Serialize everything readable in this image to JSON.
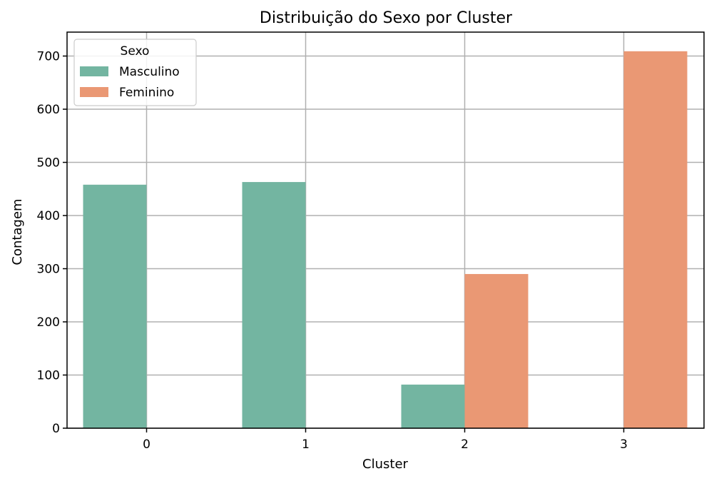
{
  "chart_data": {
    "type": "bar",
    "title": "Distribuição do Sexo por Cluster",
    "xlabel": "Cluster",
    "ylabel": "Contagem",
    "categories": [
      "0",
      "1",
      "2",
      "3"
    ],
    "series": [
      {
        "name": "Masculino",
        "values": [
          458,
          463,
          82,
          0
        ],
        "color": "#73b5a1"
      },
      {
        "name": "Feminino",
        "values": [
          0,
          0,
          290,
          709
        ],
        "color": "#ea9874"
      }
    ],
    "ylim": [
      0,
      745
    ],
    "yticks": [
      0,
      100,
      200,
      300,
      400,
      500,
      600,
      700
    ],
    "grid": true,
    "legend": {
      "title": "Sexo",
      "placement": "top-left"
    }
  }
}
